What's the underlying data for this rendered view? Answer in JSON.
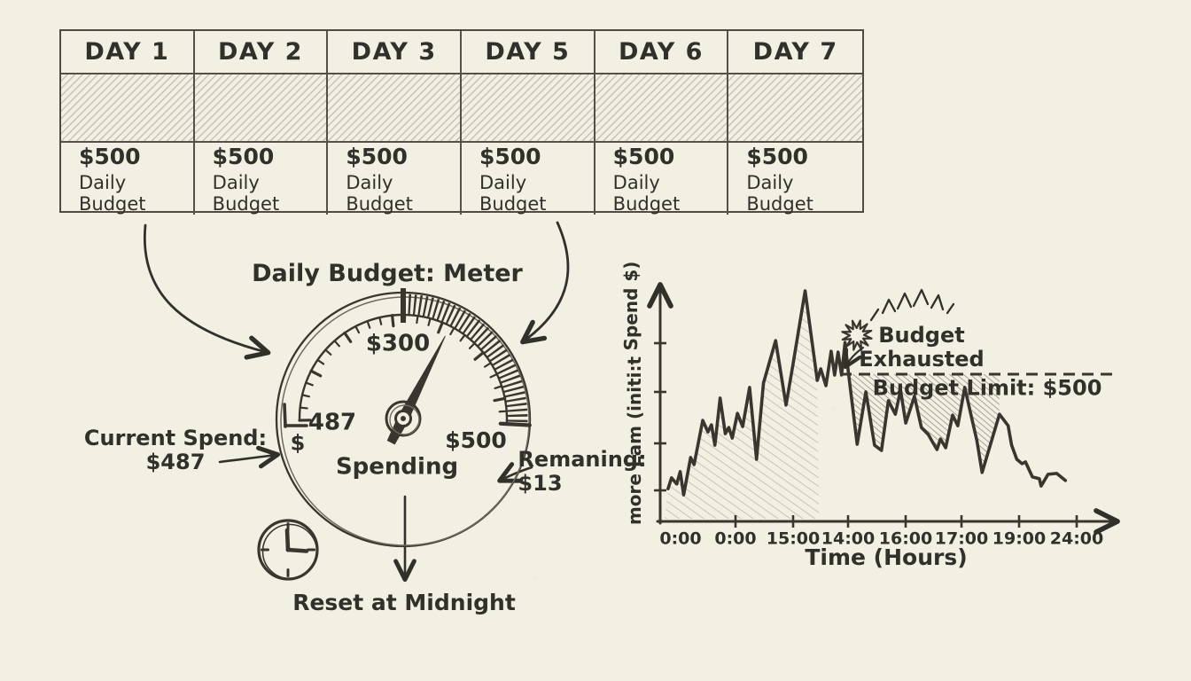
{
  "table": {
    "days": [
      "DAY 1",
      "DAY 2",
      "DAY 3",
      "DAY 5",
      "DAY 6",
      "DAY 7"
    ],
    "amount": "$500",
    "amount_label": "Daily Budget"
  },
  "meter": {
    "title": "Daily Budget: Meter",
    "scale_label": "$300",
    "current_value": "487",
    "currency_symbol": "$",
    "max_label": "$500",
    "center_label": "Spending",
    "current_spend_note_line1": "Current Spend:",
    "current_spend_note_line2": "$487",
    "remaining_note_line1": "Remaning:",
    "remaining_note_line2": "$13",
    "reset_note": "Reset at Midnight"
  },
  "chart": {
    "ylabel_top": "Spend $)",
    "ylabel_bottom": "more Lam (initi:t",
    "xlabel": "Time (Hours)",
    "x_ticks": [
      "0:00",
      "0:00",
      "15:00",
      "14:00",
      "16:00",
      "17:00",
      "19:00",
      "24:00"
    ],
    "budget_limit_label": "Budget Limit: $500",
    "exhausted_line1": "Budget",
    "exhausted_line2": "Exhausted"
  },
  "icons": {
    "clock": "clock-face with hands at 12 and 3",
    "burst": "explosion starburst",
    "rays": "radiating sparkle strokes",
    "arrows": "hand-drawn curved arrows"
  },
  "colors": {
    "paper": "#f2efe3",
    "ink": "#32302a",
    "pencil_light": "#c2bcab",
    "pencil_dark": "#8a8174"
  },
  "chart_data": {
    "type": "line",
    "title": "",
    "xlabel": "Time (Hours)",
    "ylabel": "Spend $",
    "x_ticks": [
      "0:00",
      "0:00",
      "15:00",
      "14:00",
      "16:00",
      "17:00",
      "19:00",
      "24:00"
    ],
    "xlim_hours": [
      0,
      24
    ],
    "ylim": [
      0,
      800
    ],
    "budget_limit": 500,
    "budget_exhausted_at_hour": 10.7,
    "grid": false,
    "legend": "none",
    "series": [
      {
        "name": "Spend",
        "points": [
          [
            0.3,
            111
          ],
          [
            0.5,
            148
          ],
          [
            0.8,
            127
          ],
          [
            1.0,
            169
          ],
          [
            1.2,
            90
          ],
          [
            1.6,
            217
          ],
          [
            1.8,
            193
          ],
          [
            2.3,
            343
          ],
          [
            2.6,
            304
          ],
          [
            2.8,
            328
          ],
          [
            3.0,
            259
          ],
          [
            3.3,
            419
          ],
          [
            3.6,
            298
          ],
          [
            3.8,
            319
          ],
          [
            4.0,
            283
          ],
          [
            4.3,
            367
          ],
          [
            4.6,
            322
          ],
          [
            5.0,
            455
          ],
          [
            5.4,
            211
          ],
          [
            5.8,
            470
          ],
          [
            6.5,
            614
          ],
          [
            7.1,
            395
          ],
          [
            7.5,
            533
          ],
          [
            8.2,
            783
          ],
          [
            8.9,
            479
          ],
          [
            9.1,
            518
          ],
          [
            9.4,
            461
          ],
          [
            9.7,
            578
          ],
          [
            9.9,
            497
          ],
          [
            10.1,
            575
          ],
          [
            10.3,
            497
          ],
          [
            10.5,
            608
          ],
          [
            10.7,
            503
          ],
          [
            11.2,
            262
          ],
          [
            11.7,
            440
          ],
          [
            12.2,
            259
          ],
          [
            12.6,
            241
          ],
          [
            13.0,
            410
          ],
          [
            13.4,
            364
          ],
          [
            13.7,
            446
          ],
          [
            14.0,
            334
          ],
          [
            14.5,
            425
          ],
          [
            14.9,
            319
          ],
          [
            15.3,
            295
          ],
          [
            15.5,
            274
          ],
          [
            15.8,
            244
          ],
          [
            16.0,
            280
          ],
          [
            16.3,
            250
          ],
          [
            16.7,
            361
          ],
          [
            17.0,
            325
          ],
          [
            17.4,
            455
          ],
          [
            17.7,
            377
          ],
          [
            18.1,
            274
          ],
          [
            18.4,
            166
          ],
          [
            19.4,
            364
          ],
          [
            19.9,
            325
          ],
          [
            20.1,
            259
          ],
          [
            20.4,
            211
          ],
          [
            20.7,
            196
          ],
          [
            20.9,
            202
          ],
          [
            21.3,
            151
          ],
          [
            21.7,
            145
          ],
          [
            21.8,
            120
          ],
          [
            22.2,
            160
          ],
          [
            22.7,
            163
          ],
          [
            23.2,
            139
          ]
        ]
      }
    ]
  }
}
